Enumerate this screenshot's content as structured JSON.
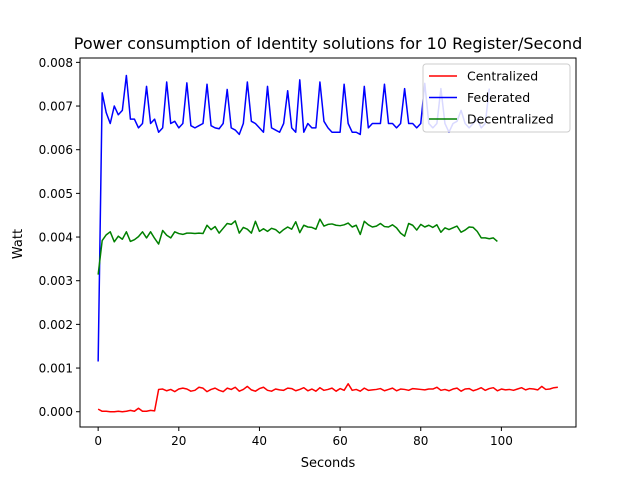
{
  "chart_data": {
    "type": "line",
    "title": "Power consumption of Identity solutions for 10 Register/Second",
    "xlabel": "Seconds",
    "ylabel": "Watt",
    "xlim": [
      -4.5,
      118.5
    ],
    "ylim": [
      -0.00035,
      0.0081
    ],
    "xticks": [
      0,
      20,
      40,
      60,
      80,
      100
    ],
    "yticks": [
      0.0,
      0.001,
      0.002,
      0.003,
      0.004,
      0.005,
      0.006,
      0.007,
      0.008
    ],
    "ytick_labels": [
      "0.000",
      "0.001",
      "0.002",
      "0.003",
      "0.004",
      "0.005",
      "0.006",
      "0.007",
      "0.008"
    ],
    "grid": false,
    "legend_position": "top-right",
    "series": [
      {
        "name": "Centralized",
        "color": "#ff0000",
        "x": [
          0,
          1,
          2,
          3,
          4,
          5,
          6,
          7,
          8,
          9,
          10,
          11,
          12,
          13,
          14,
          15,
          16,
          17,
          18,
          19,
          20,
          21,
          22,
          23,
          24,
          25,
          26,
          27,
          28,
          29,
          30,
          31,
          32,
          33,
          34,
          35,
          36,
          37,
          38,
          39,
          40,
          41,
          42,
          43,
          44,
          45,
          46,
          47,
          48,
          49,
          50,
          51,
          52,
          53,
          54,
          55,
          56,
          57,
          58,
          59,
          60,
          61,
          62,
          63,
          64,
          65,
          66,
          67,
          68,
          69,
          70,
          71,
          72,
          73,
          74,
          75,
          76,
          77,
          78,
          79,
          80,
          81,
          82,
          83,
          84,
          85,
          86,
          87,
          88,
          89,
          90,
          91,
          92,
          93,
          94,
          95,
          96,
          97,
          98,
          99,
          100,
          101,
          102,
          103,
          104,
          105,
          106,
          107,
          108,
          109,
          110,
          111,
          112,
          113,
          114
        ],
        "values": [
          6e-05,
          1e-05,
          1e-05,
          0.0,
          0.0,
          1e-05,
          0.0,
          1e-05,
          3e-05,
          1e-05,
          8e-05,
          1e-05,
          1e-05,
          3e-05,
          2e-05,
          0.00051,
          0.00052,
          0.00048,
          0.00051,
          0.00046,
          0.00052,
          0.00054,
          0.00052,
          0.00047,
          0.00049,
          0.00056,
          0.00054,
          0.00046,
          0.00051,
          0.00054,
          0.00049,
          0.00046,
          0.00054,
          0.00051,
          0.00056,
          0.00047,
          0.00051,
          0.00058,
          0.0005,
          0.00047,
          0.00053,
          0.00056,
          0.00049,
          0.00047,
          0.00052,
          0.0005,
          0.00049,
          0.00054,
          0.00053,
          0.00048,
          0.00051,
          0.00055,
          0.00048,
          0.00052,
          0.00047,
          0.00055,
          0.00049,
          0.00051,
          0.00054,
          0.00047,
          0.00053,
          0.00049,
          0.00064,
          0.00049,
          0.00051,
          0.00047,
          0.00054,
          0.00049,
          0.0005,
          0.00051,
          0.00053,
          0.00048,
          0.00051,
          0.00054,
          0.00048,
          0.00052,
          0.00051,
          0.00049,
          0.00053,
          0.00052,
          0.00051,
          0.0005,
          0.00052,
          0.00052,
          0.00056,
          0.00049,
          0.00051,
          0.00048,
          0.00052,
          0.00054,
          0.00047,
          0.00052,
          0.00053,
          0.00048,
          0.00051,
          0.00055,
          0.00049,
          0.00053,
          0.00055,
          0.00048,
          0.00052,
          0.0005,
          0.00051,
          0.00049,
          0.00052,
          0.00055,
          0.0005,
          0.00053,
          0.00052,
          0.0005,
          0.00058,
          0.00051,
          0.00052,
          0.00055,
          0.00056
        ]
      },
      {
        "name": "Federated",
        "color": "#0000ff",
        "x": [
          0,
          1,
          2,
          3,
          4,
          5,
          6,
          7,
          8,
          9,
          10,
          11,
          12,
          13,
          14,
          15,
          16,
          17,
          18,
          19,
          20,
          21,
          22,
          23,
          24,
          25,
          26,
          27,
          28,
          29,
          30,
          31,
          32,
          33,
          34,
          35,
          36,
          37,
          38,
          39,
          40,
          41,
          42,
          43,
          44,
          45,
          46,
          47,
          48,
          49,
          50,
          51,
          52,
          53,
          54,
          55,
          56,
          57,
          58,
          59,
          60,
          61,
          62,
          63,
          64,
          65,
          66,
          67,
          68,
          69,
          70,
          71,
          72,
          73,
          74,
          75,
          76,
          77,
          78,
          79,
          80,
          81,
          82,
          83,
          84,
          85,
          86,
          87,
          88,
          89,
          90,
          91,
          92,
          93,
          94,
          95,
          96,
          97
        ],
        "values": [
          0.00115,
          0.0073,
          0.00685,
          0.0066,
          0.007,
          0.0068,
          0.0069,
          0.0077,
          0.0067,
          0.0067,
          0.0065,
          0.0066,
          0.00745,
          0.0066,
          0.0067,
          0.0064,
          0.0065,
          0.00755,
          0.0066,
          0.00665,
          0.0065,
          0.0066,
          0.00753,
          0.00655,
          0.0065,
          0.00655,
          0.0066,
          0.0075,
          0.00655,
          0.0065,
          0.00648,
          0.0066,
          0.00738,
          0.0065,
          0.00645,
          0.00635,
          0.0066,
          0.00755,
          0.00665,
          0.0066,
          0.0065,
          0.0064,
          0.00745,
          0.0065,
          0.00645,
          0.0064,
          0.0066,
          0.00735,
          0.0065,
          0.0064,
          0.0076,
          0.0064,
          0.0066,
          0.0065,
          0.0065,
          0.00755,
          0.00665,
          0.0065,
          0.0064,
          0.0064,
          0.0064,
          0.0075,
          0.0066,
          0.0064,
          0.0064,
          0.00635,
          0.00745,
          0.0065,
          0.0066,
          0.0066,
          0.0066,
          0.0075,
          0.0066,
          0.0066,
          0.0065,
          0.0066,
          0.0074,
          0.0066,
          0.0066,
          0.0065,
          0.0066,
          0.00752,
          0.0066,
          0.0065,
          0.0066,
          0.0074,
          0.0066,
          0.0064,
          0.0066,
          0.00665,
          0.0069,
          0.0066,
          0.0065,
          0.0066,
          0.0067,
          0.0065,
          0.0066,
          0.0074
        ]
      },
      {
        "name": "Decentralized",
        "color": "#008000",
        "x": [
          0,
          1,
          2,
          3,
          4,
          5,
          6,
          7,
          8,
          9,
          10,
          11,
          12,
          13,
          14,
          15,
          16,
          17,
          18,
          19,
          20,
          21,
          22,
          23,
          24,
          25,
          26,
          27,
          28,
          29,
          30,
          31,
          32,
          33,
          34,
          35,
          36,
          37,
          38,
          39,
          40,
          41,
          42,
          43,
          44,
          45,
          46,
          47,
          48,
          49,
          50,
          51,
          52,
          53,
          54,
          55,
          56,
          57,
          58,
          59,
          60,
          61,
          62,
          63,
          64,
          65,
          66,
          67,
          68,
          69,
          70,
          71,
          72,
          73,
          74,
          75,
          76,
          77,
          78,
          79,
          80,
          81,
          82,
          83,
          84,
          85,
          86,
          87,
          88,
          89,
          90,
          91,
          92,
          93,
          94,
          95,
          96,
          97,
          98,
          99
        ],
        "values": [
          0.00314,
          0.00392,
          0.00405,
          0.00412,
          0.00389,
          0.00402,
          0.00395,
          0.00412,
          0.0039,
          0.00394,
          0.00401,
          0.00412,
          0.00398,
          0.00412,
          0.00397,
          0.00384,
          0.00415,
          0.00404,
          0.00398,
          0.00412,
          0.00408,
          0.00406,
          0.00409,
          0.00409,
          0.00408,
          0.00409,
          0.00408,
          0.00427,
          0.00417,
          0.00424,
          0.00409,
          0.0042,
          0.00431,
          0.00429,
          0.00437,
          0.00409,
          0.00422,
          0.00418,
          0.00409,
          0.00436,
          0.00413,
          0.00419,
          0.00413,
          0.0042,
          0.00417,
          0.00409,
          0.00417,
          0.00423,
          0.00418,
          0.00435,
          0.0041,
          0.00427,
          0.00423,
          0.00422,
          0.00418,
          0.00441,
          0.00425,
          0.00429,
          0.0043,
          0.00427,
          0.00426,
          0.00428,
          0.00432,
          0.00423,
          0.00427,
          0.00406,
          0.00436,
          0.00428,
          0.00423,
          0.00425,
          0.00431,
          0.00424,
          0.00423,
          0.00428,
          0.00421,
          0.00409,
          0.00402,
          0.00431,
          0.00427,
          0.00416,
          0.00429,
          0.00423,
          0.00427,
          0.00422,
          0.00428,
          0.00411,
          0.00421,
          0.00417,
          0.00421,
          0.00425,
          0.00411,
          0.00416,
          0.00423,
          0.00422,
          0.00413,
          0.00398,
          0.00398,
          0.00396,
          0.00398,
          0.0039
        ]
      }
    ]
  }
}
